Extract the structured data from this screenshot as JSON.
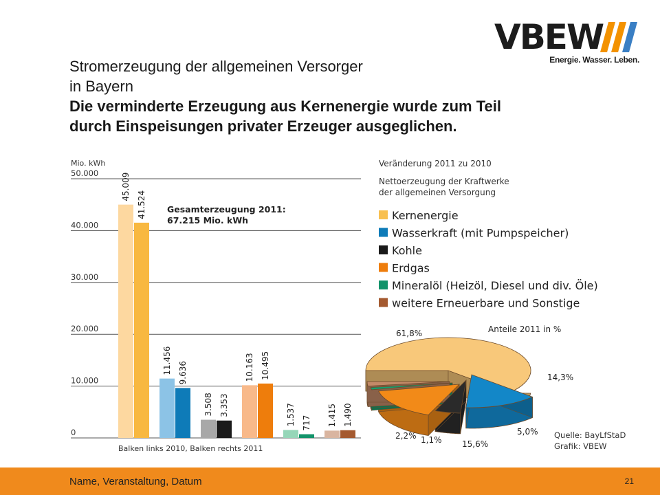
{
  "logo": {
    "text": "VBEW",
    "tagline": "Energie. Wasser. Leben.",
    "slash_colors": [
      "#f39200",
      "#3a7fc4"
    ]
  },
  "title": {
    "line1": "Stromerzeugung der allgemeinen Versorger",
    "line2": "in Bayern",
    "bold1": "Die verminderte Erzeugung aus Kernenergie wurde zum Teil",
    "bold2": "durch Einspeisungen privater Erzeuger ausgeglichen."
  },
  "chart_data": [
    {
      "type": "bar",
      "ylabel": "Mio. kWh",
      "ylim": [
        0,
        50000
      ],
      "yticks": [
        {
          "value": 0,
          "label": "0"
        },
        {
          "value": 10000,
          "label": "10.000"
        },
        {
          "value": 20000,
          "label": "20.000"
        },
        {
          "value": 30000,
          "label": "30.000"
        },
        {
          "value": 40000,
          "label": "40.000"
        },
        {
          "value": 50000,
          "label": "50.000"
        }
      ],
      "grid": true,
      "xlabel": "Balken links 2010, Balken rechts 2011",
      "annotation": [
        "Gesamterzeugung 2011:",
        "67.215 Mio. kWh"
      ],
      "categories": [
        "Kernenergie",
        "Wasserkraft (mit Pumpspeicher)",
        "Kohle",
        "Erdgas",
        "Mineralöl (Heizöl, Diesel und div. Öle)",
        "weitere Erneuerbare und Sonstige"
      ],
      "series": [
        {
          "values": [
            45009,
            11456,
            3508,
            10163,
            1537,
            1415
          ],
          "labels": [
            "45.009",
            "11.456",
            "3.508",
            "10.163",
            "1.537",
            "1.415"
          ],
          "colors": [
            "#fdd8a0",
            "#8cc3e6",
            "#a8a8a8",
            "#f8b98a",
            "#96d6b8",
            "#d9b5a0"
          ]
        },
        {
          "values": [
            41524,
            9636,
            3353,
            10495,
            717,
            1490
          ],
          "labels": [
            "41.524",
            "9.636",
            "3.353",
            "10.495",
            "717",
            "1.490"
          ],
          "colors": [
            "#f8b840",
            "#0e7bb8",
            "#1a1a1a",
            "#ee7d0c",
            "#12936a",
            "#a45a30"
          ]
        }
      ]
    },
    {
      "type": "pie",
      "title": "Anteile 2011 in %",
      "slices": [
        {
          "name": "Kernenergie",
          "value": 61.8,
          "label": "61,8%",
          "color": "#f8c87a"
        },
        {
          "name": "Wasserkraft (mit Pumpspeicher)",
          "value": 14.3,
          "label": "14,3%",
          "color": "#1387c8"
        },
        {
          "name": "Kohle",
          "value": 5.0,
          "label": "5,0%",
          "color": "#2a2a2a"
        },
        {
          "name": "Erdgas",
          "value": 15.6,
          "label": "15,6%",
          "color": "#f28a18"
        },
        {
          "name": "Mineralöl (Heizöl, Diesel und div. Öle)",
          "value": 1.1,
          "label": "1,1%",
          "color": "#14a070"
        },
        {
          "name": "weitere Erneuerbare und Sonstige",
          "value": 2.2,
          "label": "2,2%",
          "color": "#c38a68"
        }
      ]
    }
  ],
  "legend": {
    "title1": "Veränderung 2011 zu 2010",
    "title2a": "Nettoerzeugung der Kraftwerke",
    "title2b": "der allgemeinen Versorgung",
    "placement": "right",
    "items": [
      {
        "label": "Kernenergie",
        "color": "#f8c050"
      },
      {
        "label": "Wasserkraft (mit Pumpspeicher)",
        "color": "#0e7bb8"
      },
      {
        "label": "Kohle",
        "color": "#1a1a1a"
      },
      {
        "label": "Erdgas",
        "color": "#ee7d0c"
      },
      {
        "label": "Mineralöl (Heizöl, Diesel und div. Öle)",
        "color": "#12936a"
      },
      {
        "label": "weitere Erneuerbare und Sonstige",
        "color": "#a45a30"
      }
    ]
  },
  "source": {
    "line1": "Quelle: BayLfStaD",
    "line2": "Grafik: VBEW"
  },
  "footer": {
    "left": "Name, Veranstaltung, Datum",
    "page": "21",
    "color": "#f08a1c"
  }
}
